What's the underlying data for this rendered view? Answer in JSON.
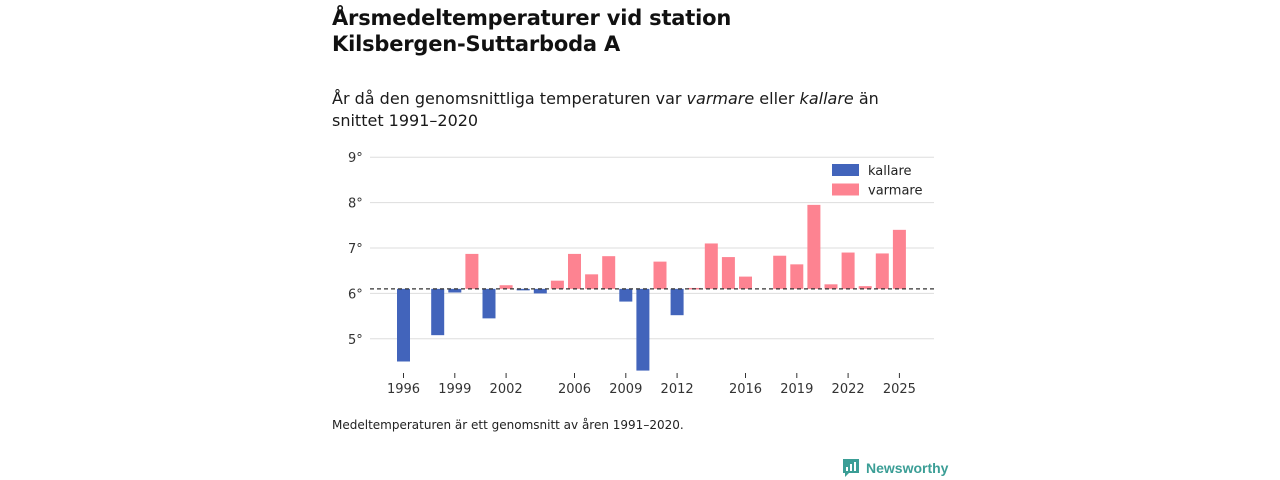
{
  "header": {
    "title_line1": "Årsmedeltemperaturer vid station",
    "title_line2": "Kilsbergen-Suttarboda A",
    "subtitle_part1": "År då den genomsnittliga temperaturen var ",
    "subtitle_warm": "varmare",
    "subtitle_part2": " eller ",
    "subtitle_cold": "kallare",
    "subtitle_part3": " än snittet 1991–2020"
  },
  "footer": {
    "note": "Medeltemperaturen är ett genomsnitt av åren 1991–2020.",
    "brand": "Newsworthy"
  },
  "colors": {
    "cold": "#4264bb",
    "warm": "#fd8391",
    "grid": "#dddddd",
    "baseline": "#333333",
    "brand": "#3b9e96"
  },
  "chart_data": {
    "type": "bar",
    "title": "Årsmedeltemperaturer vid station Kilsbergen-Suttarboda A",
    "ylabel": "",
    "xlabel": "",
    "baseline": 6.1,
    "ylim": [
      4.3,
      9.1
    ],
    "y_ticks": [
      5,
      6,
      7,
      8,
      9
    ],
    "y_tick_suffix": "°",
    "x_ticks": [
      1996,
      1999,
      2002,
      2006,
      2009,
      2012,
      2016,
      2019,
      2022,
      2025
    ],
    "legend": [
      {
        "key": "cold",
        "label": "kallare"
      },
      {
        "key": "warm",
        "label": "varmare"
      }
    ],
    "legend_position": "top-right",
    "years": [
      1996,
      1997,
      1998,
      1999,
      2000,
      2001,
      2002,
      2003,
      2004,
      2005,
      2006,
      2007,
      2008,
      2009,
      2010,
      2011,
      2012,
      2013,
      2014,
      2015,
      2016,
      2017,
      2018,
      2019,
      2020,
      2021,
      2022,
      2023,
      2024,
      2025
    ],
    "values": [
      4.5,
      null,
      5.08,
      6.02,
      6.87,
      5.45,
      6.18,
      6.08,
      6.0,
      6.28,
      6.87,
      6.42,
      6.82,
      5.82,
      4.3,
      6.7,
      5.52,
      6.12,
      7.1,
      6.8,
      6.37,
      null,
      6.83,
      6.64,
      7.95,
      6.2,
      6.9,
      6.16,
      6.88,
      7.4
    ]
  }
}
